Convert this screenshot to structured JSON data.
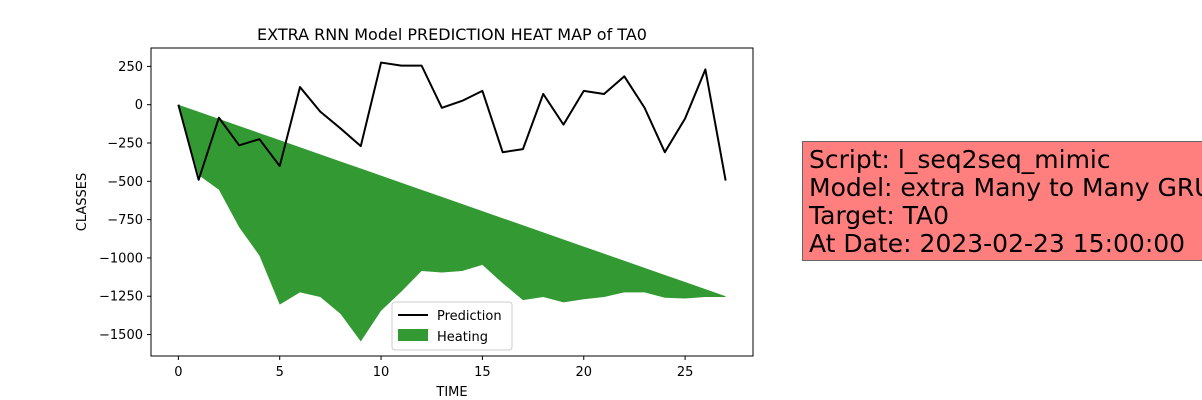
{
  "chart_data": {
    "type": "line",
    "title": "EXTRA RNN Model PREDICTION HEAT MAP of TA0",
    "xlabel": "TIME",
    "ylabel": "CLASSES",
    "xlim": [
      -1.35,
      28.35
    ],
    "ylim": [
      -1640,
      370
    ],
    "xticks": [
      0,
      5,
      10,
      15,
      20,
      25
    ],
    "yticks": [
      250,
      0,
      -250,
      -500,
      -750,
      -1000,
      -1250,
      -1500
    ],
    "ytick_labels": [
      "250",
      "0",
      "−250",
      "−500",
      "−750",
      "−1000",
      "−1250",
      "−1500"
    ],
    "grid": false,
    "legend_position": "lower center",
    "series": [
      {
        "name": "Prediction",
        "kind": "line",
        "color": "#000000",
        "x": [
          0,
          1,
          2,
          3,
          4,
          5,
          6,
          7,
          8,
          9,
          10,
          11,
          12,
          13,
          14,
          15,
          16,
          17,
          18,
          19,
          20,
          21,
          22,
          23,
          24,
          25,
          26,
          27
        ],
        "y": [
          0,
          -490,
          -85,
          -265,
          -225,
          -400,
          115,
          -45,
          -155,
          -270,
          275,
          255,
          255,
          -20,
          25,
          90,
          -310,
          -290,
          70,
          -130,
          90,
          70,
          185,
          -20,
          -310,
          -90,
          230,
          -495
        ]
      },
      {
        "name": "Heating",
        "kind": "fill_between",
        "color": "#339933",
        "x": [
          0,
          1,
          2,
          3,
          4,
          5,
          6,
          7,
          8,
          9,
          10,
          11,
          12,
          13,
          14,
          15,
          16,
          17,
          18,
          19,
          20,
          21,
          22,
          23,
          24,
          25,
          26,
          27
        ],
        "y_upper": [
          0,
          -46.3,
          -92.6,
          -138.9,
          -185.2,
          -231.5,
          -277.8,
          -324.1,
          -370.4,
          -416.7,
          -463,
          -509.3,
          -555.6,
          -601.9,
          -648.1,
          -694.4,
          -740.7,
          -787,
          -833.3,
          -879.6,
          -925.9,
          -972.2,
          -1018.5,
          -1064.8,
          -1111.1,
          -1157.4,
          -1203.7,
          -1250
        ],
        "y_lower": [
          0,
          -460,
          -555,
          -800,
          -985,
          -1305,
          -1225,
          -1255,
          -1365,
          -1545,
          -1345,
          -1220,
          -1085,
          -1095,
          -1085,
          -1045,
          -1165,
          -1275,
          -1255,
          -1290,
          -1270,
          -1255,
          -1225,
          -1225,
          -1260,
          -1265,
          -1255,
          -1255
        ]
      }
    ]
  },
  "info_box": {
    "background": "#ff7f7f",
    "lines": [
      "Script: l_seq2seq_mimic",
      "Model: extra Many to Many GRU",
      "Target: TA0",
      "At Date: 2023-02-23 15:00:00"
    ]
  }
}
